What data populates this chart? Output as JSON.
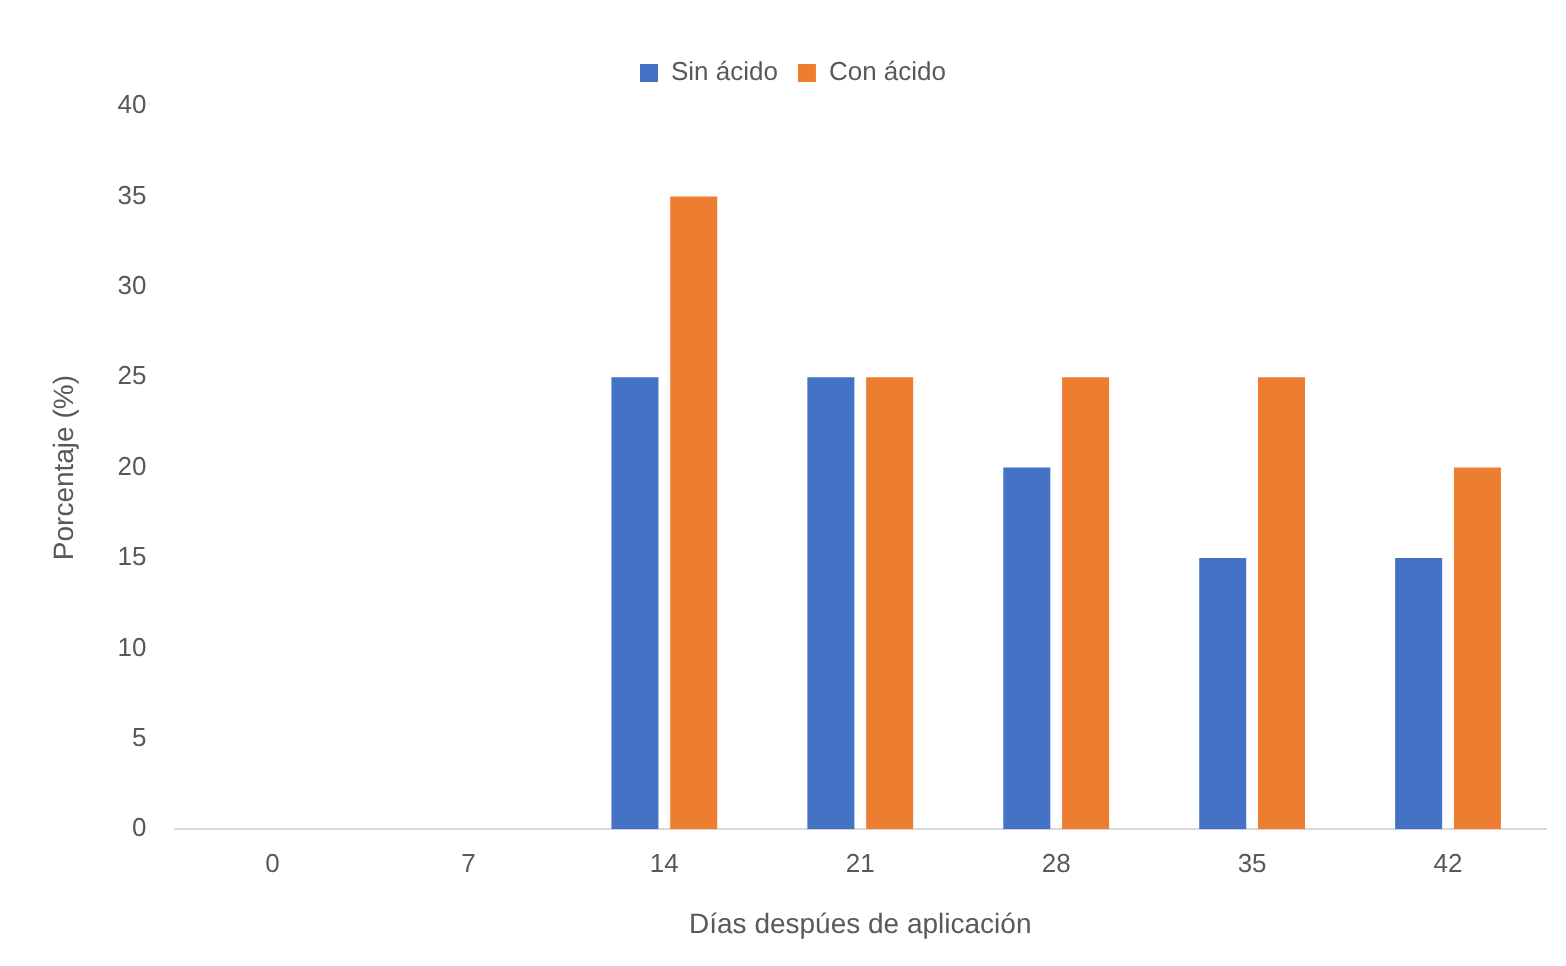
{
  "chart_data": {
    "type": "bar",
    "xlabel": "Días despúes de aplicación",
    "ylabel": "Porcentaje (%)",
    "categories": [
      "0",
      "7",
      "14",
      "21",
      "28",
      "35",
      "42"
    ],
    "series": [
      {
        "name": "Sin ácido",
        "color": "#4472c4",
        "values": [
          0,
          0,
          25,
          25,
          20,
          15,
          15
        ]
      },
      {
        "name": "Con ácido",
        "color": "#ed7d31",
        "values": [
          0,
          0,
          35,
          25,
          25,
          25,
          20
        ]
      }
    ],
    "ylim": [
      0,
      40
    ],
    "yticks": [
      0,
      5,
      10,
      15,
      20,
      25,
      30,
      35,
      40
    ],
    "grid": false,
    "legend": "top"
  }
}
